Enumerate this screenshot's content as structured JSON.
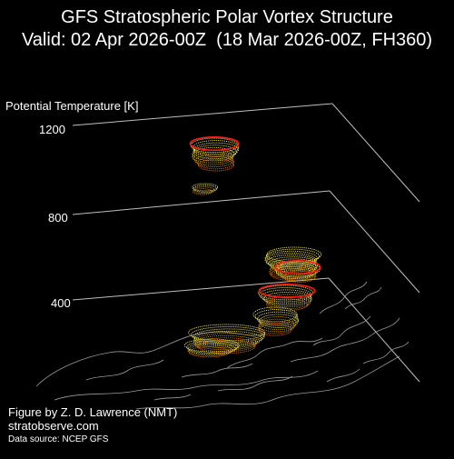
{
  "title": {
    "line1": "GFS Stratospheric Polar Vortex Structure",
    "line2": "Valid: 02 Apr 2026-00Z  (18 Mar 2026-00Z, FH360)"
  },
  "axis": {
    "label": "Potential Temperature [K]",
    "ticks": [
      "1200",
      "800",
      "400"
    ]
  },
  "credits": {
    "author": "Figure by Z. D. Lawrence (NMT)",
    "site": "stratobserve.com",
    "source": "Data source: NCEP GFS"
  },
  "colors": {
    "background": "#000000",
    "grid": "#bfbfbf",
    "coastline": "#9a9a9a",
    "contour_low": "#c8a000",
    "contour_mid": "#f2e65a",
    "contour_high": "#e06a00",
    "contour_outer": "#ff1a1a"
  }
}
